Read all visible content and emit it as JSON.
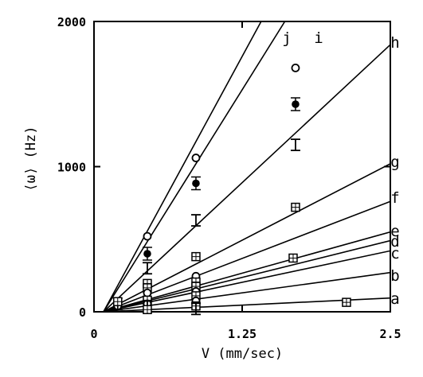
{
  "chart_data": {
    "type": "scatter",
    "xlabel": "V  (mm/sec)",
    "ylabel": "⟨ω⟩ (Hz)",
    "xlim": [
      0,
      2.5
    ],
    "ylim": [
      0,
      2000
    ],
    "x_ticks": [
      "0",
      "1.25",
      "2.5"
    ],
    "y_ticks": [
      "0",
      "1000",
      "2000"
    ],
    "grid": false,
    "fit_lines": [
      {
        "label": "a",
        "x": [
          0.08,
          2.5
        ],
        "y": [
          0,
          95
        ]
      },
      {
        "label": "b",
        "x": [
          0.08,
          2.5
        ],
        "y": [
          0,
          270
        ]
      },
      {
        "label": "c",
        "x": [
          0.08,
          2.5
        ],
        "y": [
          0,
          420
        ]
      },
      {
        "label": "d",
        "x": [
          0.08,
          2.5
        ],
        "y": [
          0,
          490
        ]
      },
      {
        "label": "e",
        "x": [
          0.08,
          2.5
        ],
        "y": [
          0,
          550
        ]
      },
      {
        "label": "f",
        "x": [
          0.08,
          2.5
        ],
        "y": [
          0,
          760
        ]
      },
      {
        "label": "g",
        "x": [
          0.08,
          2.5
        ],
        "y": [
          0,
          1020
        ]
      },
      {
        "label": "h",
        "x": [
          0.08,
          2.5
        ],
        "y": [
          0,
          1840
        ]
      },
      {
        "label": "i",
        "x": [
          0.08,
          1.61
        ],
        "y": [
          0,
          2000
        ]
      },
      {
        "label": "j",
        "x": [
          0.08,
          1.41
        ],
        "y": [
          0,
          2000
        ]
      }
    ],
    "points": [
      {
        "x": 0.2,
        "y": 40,
        "m": "circle"
      },
      {
        "x": 0.2,
        "y": 55,
        "m": "errorbar"
      },
      {
        "x": 0.2,
        "y": 70,
        "m": "square"
      },
      {
        "x": 0.45,
        "y": 520,
        "m": "circle"
      },
      {
        "x": 0.45,
        "y": 400,
        "m": "filled"
      },
      {
        "x": 0.45,
        "y": 300,
        "m": "errorbar"
      },
      {
        "x": 0.45,
        "y": 195,
        "m": "square"
      },
      {
        "x": 0.45,
        "y": 165,
        "m": "square"
      },
      {
        "x": 0.45,
        "y": 130,
        "m": "circle"
      },
      {
        "x": 0.45,
        "y": 80,
        "m": "square"
      },
      {
        "x": 0.45,
        "y": 55,
        "m": "circle"
      },
      {
        "x": 0.45,
        "y": 35,
        "m": "errorbar"
      },
      {
        "x": 0.45,
        "y": 15,
        "m": "square"
      },
      {
        "x": 0.86,
        "y": 1060,
        "m": "circle"
      },
      {
        "x": 0.86,
        "y": 885,
        "m": "filled"
      },
      {
        "x": 0.86,
        "y": 630,
        "m": "errorbar"
      },
      {
        "x": 0.86,
        "y": 380,
        "m": "square"
      },
      {
        "x": 0.86,
        "y": 245,
        "m": "circle"
      },
      {
        "x": 0.86,
        "y": 205,
        "m": "square"
      },
      {
        "x": 0.86,
        "y": 175,
        "m": "square"
      },
      {
        "x": 0.86,
        "y": 140,
        "m": "circle"
      },
      {
        "x": 0.86,
        "y": 110,
        "m": "square"
      },
      {
        "x": 0.86,
        "y": 75,
        "m": "circle"
      },
      {
        "x": 0.86,
        "y": 40,
        "m": "square"
      },
      {
        "x": 0.86,
        "y": 20,
        "m": "errorbar"
      },
      {
        "x": 1.7,
        "y": 1680,
        "m": "circle"
      },
      {
        "x": 1.7,
        "y": 1430,
        "m": "filled"
      },
      {
        "x": 1.7,
        "y": 1150,
        "m": "errorbar"
      },
      {
        "x": 1.7,
        "y": 720,
        "m": "square"
      },
      {
        "x": 1.68,
        "y": 370,
        "m": "square"
      },
      {
        "x": 2.13,
        "y": 65,
        "m": "square"
      }
    ]
  }
}
